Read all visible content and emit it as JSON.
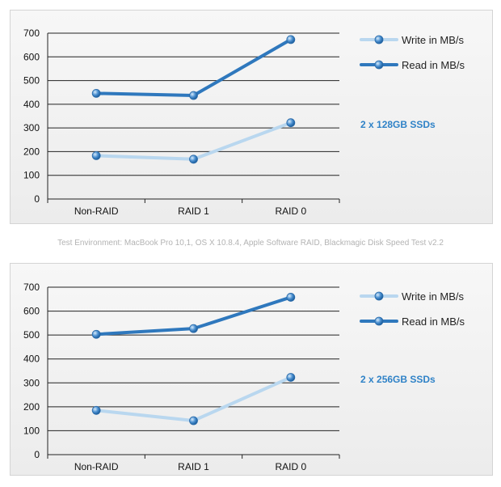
{
  "caption": "Test Environment: MacBook Pro 10,1, OS X 10.8.4, Apple Software RAID, Blackmagic Disk Speed Test v2.2",
  "colors": {
    "write": "#b9d7ef",
    "read": "#2f78bd",
    "subtitle": "#2f82c7",
    "grid": "#222222",
    "marker": "#4a8fd0"
  },
  "chart_data": [
    {
      "type": "line",
      "subtitle": "2 x 128GB SSDs",
      "categories": [
        "Non-RAID",
        "RAID 1",
        "RAID 0"
      ],
      "ylim": [
        0,
        700
      ],
      "yticks": [
        "0",
        "100",
        "200",
        "300",
        "400",
        "500",
        "600",
        "700"
      ],
      "series": [
        {
          "name": "Write in MB/s",
          "values": [
            183,
            168,
            322
          ]
        },
        {
          "name": "Read in MB/s",
          "values": [
            446,
            437,
            673
          ]
        }
      ],
      "legend_position": "top-right"
    },
    {
      "type": "line",
      "subtitle": "2 x 256GB SSDs",
      "categories": [
        "Non-RAID",
        "RAID 1",
        "RAID 0"
      ],
      "ylim": [
        0,
        700
      ],
      "yticks": [
        "0",
        "100",
        "200",
        "300",
        "400",
        "500",
        "600",
        "700"
      ],
      "series": [
        {
          "name": "Write in MB/s",
          "values": [
            185,
            142,
            323
          ]
        },
        {
          "name": "Read in MB/s",
          "values": [
            503,
            527,
            658
          ]
        }
      ],
      "legend_position": "top-right"
    }
  ]
}
